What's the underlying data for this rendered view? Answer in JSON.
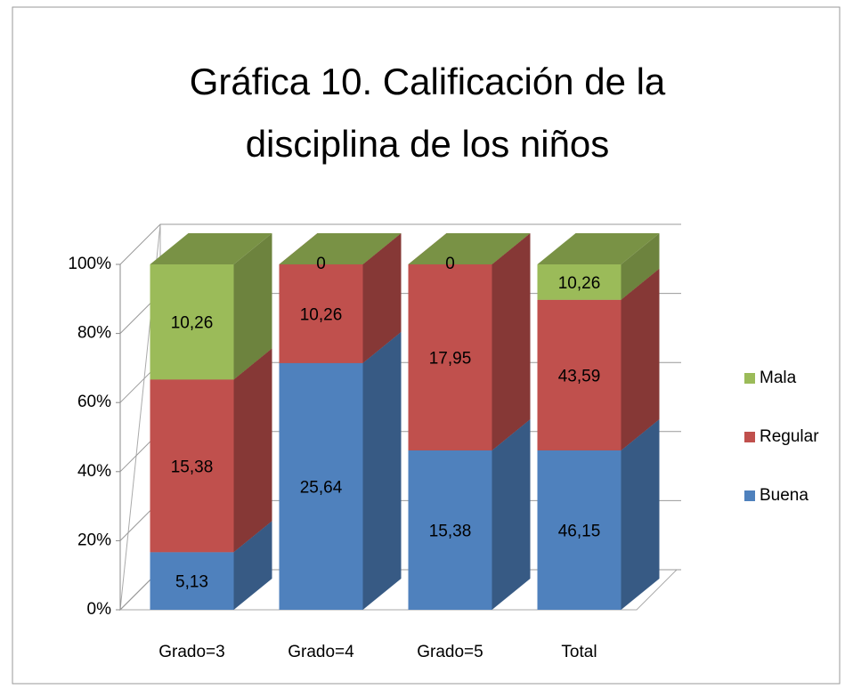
{
  "chart_data": {
    "type": "bar3d",
    "stacking": "percent",
    "title": "Gráfica 10. Calificación de la disciplina de los niños",
    "categories": [
      "Grado=3",
      "Grado=4",
      "Grado=5",
      "Total"
    ],
    "series": [
      {
        "name": "Buena",
        "color": "#4f81bd",
        "values": [
          5.13,
          25.64,
          15.38,
          46.15
        ],
        "value_labels": [
          "5,13",
          "25,64",
          "15,38",
          "46,15"
        ]
      },
      {
        "name": "Regular",
        "color": "#c0504d",
        "values": [
          15.38,
          10.26,
          17.95,
          43.59
        ],
        "value_labels": [
          "15,38",
          "10,26",
          "17,95",
          "43,59"
        ]
      },
      {
        "name": "Mala",
        "color": "#9bbb59",
        "values": [
          10.26,
          0,
          0,
          10.26
        ],
        "value_labels": [
          "10,26",
          "0",
          "0",
          "10,26"
        ]
      }
    ],
    "ylim": [
      0,
      100
    ],
    "yticks": [
      {
        "value": 0,
        "label": "0%"
      },
      {
        "value": 20,
        "label": "20%"
      },
      {
        "value": 40,
        "label": "40%"
      },
      {
        "value": 60,
        "label": "60%"
      },
      {
        "value": 80,
        "label": "80%"
      },
      {
        "value": 100,
        "label": "100%"
      }
    ],
    "grid": true,
    "legend": "right"
  }
}
